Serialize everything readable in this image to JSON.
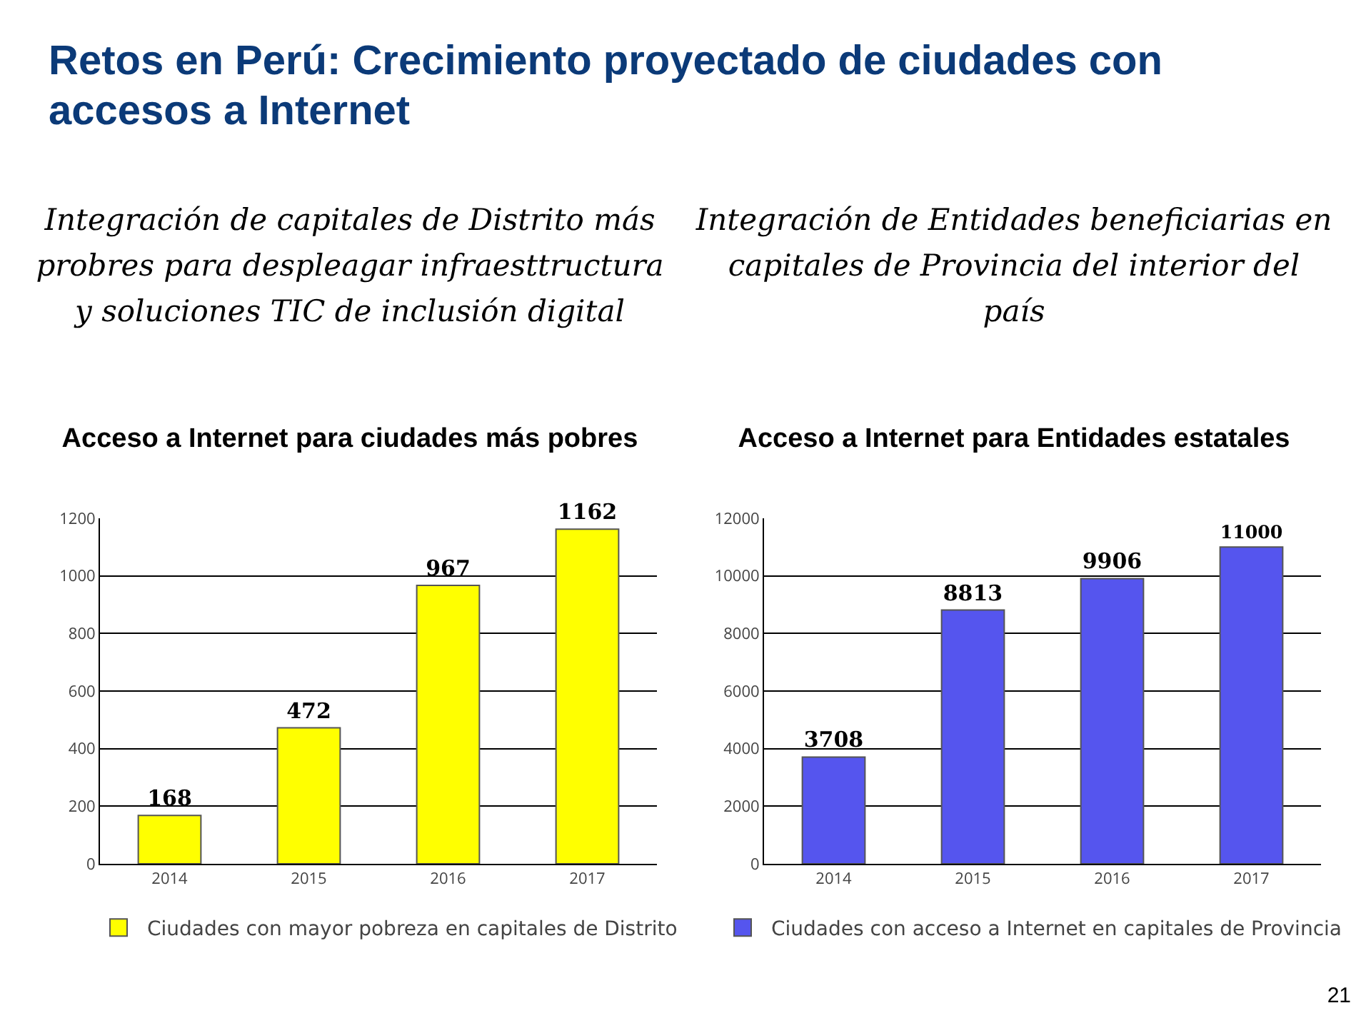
{
  "chart_data": [
    {
      "type": "other",
      "title": "Retos en Perú: Crecimiento proyectado de ciudades con accesos a Internet",
      "annotations": [
        "21"
      ]
    },
    {
      "type": "bar",
      "title": "Acceso a Internet para ciudades más pobres",
      "subtitle": "Integración de capitales de Distrito más probres para despleagar infraesttructura y soluciones TIC de inclusión digital",
      "categories": [
        "2014",
        "2015",
        "2016",
        "2017"
      ],
      "series": [
        {
          "name": "Ciudades con mayor pobreza en capitales de Distrito",
          "color": "#ffff00",
          "values": [
            168,
            472,
            967,
            1162
          ]
        }
      ],
      "ylim": [
        0,
        1200
      ],
      "yticks": [
        0,
        200,
        400,
        600,
        800,
        1000,
        1200
      ],
      "grid": "y",
      "data_labels": true,
      "legend": "bottom"
    },
    {
      "type": "bar",
      "title": "Acceso a Internet para Entidades estatales",
      "subtitle": "Integración de Entidades beneficiarias en capitales de Provincia del interior del país",
      "categories": [
        "2014",
        "2015",
        "2016",
        "2017"
      ],
      "series": [
        {
          "name": "Ciudades con acceso a Internet en capitales de Provincia",
          "color": "#5555ee",
          "values": [
            3708,
            8813,
            9906,
            11000
          ]
        }
      ],
      "ylim": [
        0,
        12000
      ],
      "yticks": [
        0,
        2000,
        4000,
        6000,
        8000,
        10000,
        12000
      ],
      "grid": "y",
      "data_labels": true,
      "legend": "bottom"
    }
  ]
}
